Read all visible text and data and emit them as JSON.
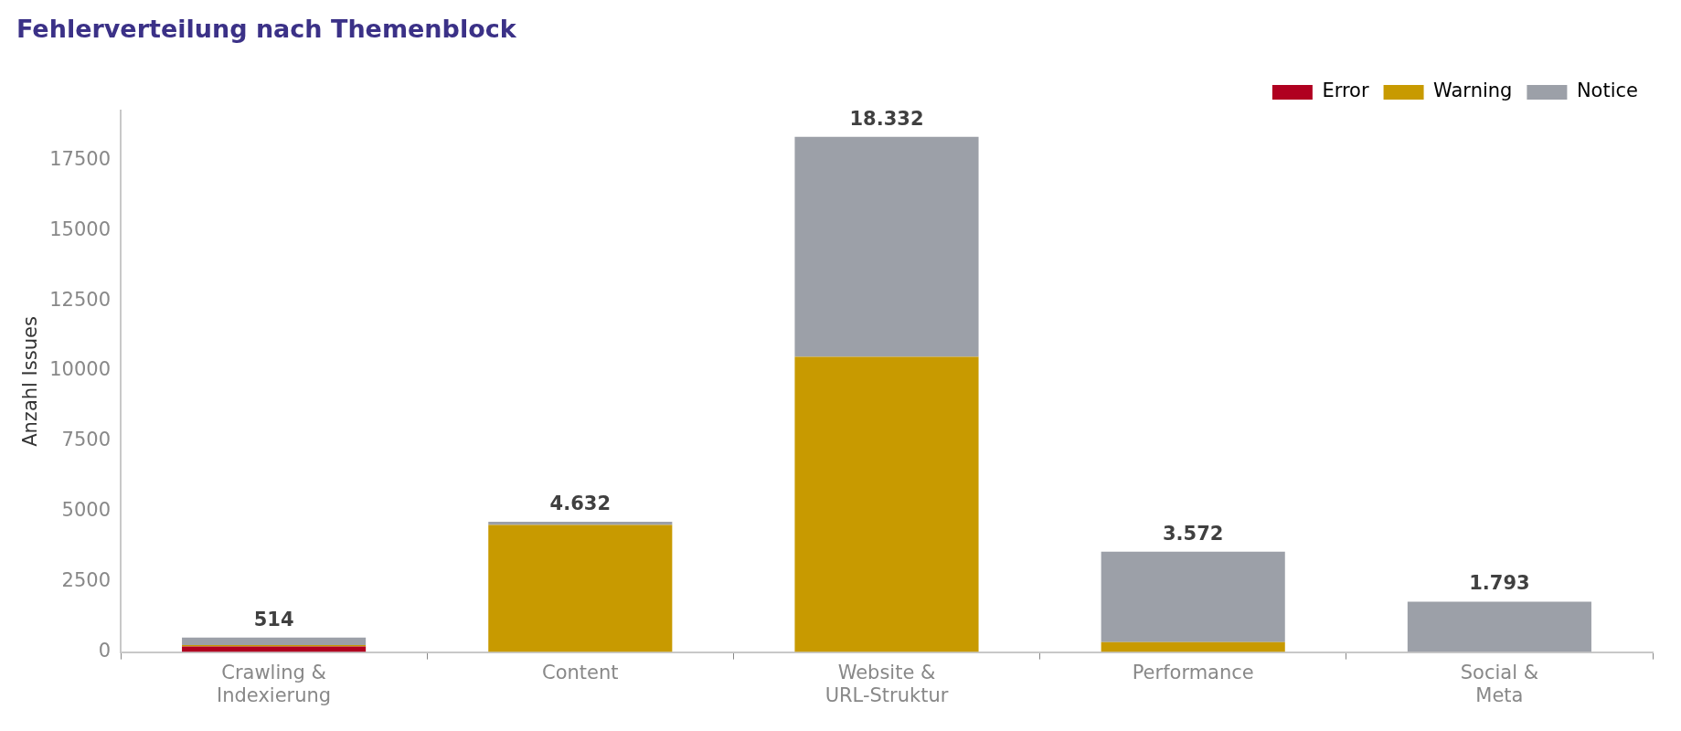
{
  "chart_data": {
    "type": "bar",
    "title": "Fehlerverteilung nach Themenblock",
    "ylabel": "Anzahl Issues",
    "categories": [
      "Crawling &\nIndexierung",
      "Content",
      "Website &\nURL-Struktur",
      "Performance",
      "Social &\nMeta"
    ],
    "series": [
      {
        "name": "Error",
        "color": "#b00020",
        "values": [
          200,
          0,
          0,
          0,
          0
        ]
      },
      {
        "name": "Warning",
        "color": "#c89a00",
        "values": [
          50,
          4520,
          10500,
          350,
          0
        ]
      },
      {
        "name": "Notice",
        "color": "#9ca0a8",
        "values": [
          264,
          112,
          7832,
          3222,
          1793
        ]
      }
    ],
    "stacked": true,
    "totals": [
      "514",
      "4.632",
      "18.332",
      "3.572",
      "1.793"
    ],
    "ylim": [
      0,
      19250
    ],
    "yticks": [
      0,
      2500,
      5000,
      7500,
      10000,
      12500,
      15000,
      17500
    ],
    "grid": false,
    "legend": "top right"
  }
}
